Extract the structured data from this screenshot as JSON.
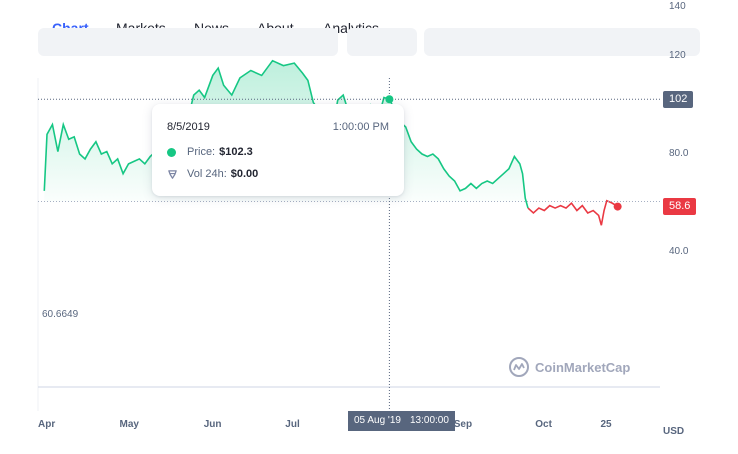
{
  "tabs": [
    {
      "label": "Chart",
      "active": true
    },
    {
      "label": "Markets",
      "active": false
    },
    {
      "label": "News",
      "active": false
    },
    {
      "label": "About",
      "active": false
    },
    {
      "label": "Analytics",
      "active": false
    }
  ],
  "tooltip": {
    "date": "8/5/2019",
    "time": "1:00:00 PM",
    "price_label": "Price:",
    "price_value": "$102.3",
    "volume_label": "Vol 24h:",
    "volume_value": "$0.00"
  },
  "crosshair": {
    "date_label": "05 Aug '19",
    "time_label": "13:00:00",
    "price_label": "102"
  },
  "current_price_label": "58.6",
  "baseline_label": "60.6649",
  "brand": "CoinMarketCap",
  "currency_unit": "USD",
  "colors": {
    "up": "#16c784",
    "down": "#ea3943",
    "accent": "#3861fb",
    "muted": "#58667e"
  },
  "chart_data": {
    "type": "area",
    "baseline": 60.6649,
    "ylim": [
      30,
      150
    ],
    "yticks": [
      "140",
      "120",
      "80.0",
      "40.0"
    ],
    "xticks": [
      "Apr",
      "May",
      "Jun",
      "Jul",
      "Aug",
      "Sep",
      "Oct",
      "25"
    ],
    "series": [
      {
        "points": [
          [
            "2019-03-31",
            65
          ],
          [
            "2019-04-01",
            88
          ],
          [
            "2019-04-03",
            92
          ],
          [
            "2019-04-05",
            81
          ],
          [
            "2019-04-07",
            92
          ],
          [
            "2019-04-09",
            86
          ],
          [
            "2019-04-11",
            87
          ],
          [
            "2019-04-13",
            80
          ],
          [
            "2019-04-15",
            78
          ],
          [
            "2019-04-17",
            82
          ],
          [
            "2019-04-19",
            85
          ],
          [
            "2019-04-21",
            80
          ],
          [
            "2019-04-23",
            81
          ],
          [
            "2019-04-25",
            76
          ],
          [
            "2019-04-27",
            78
          ],
          [
            "2019-04-29",
            72
          ],
          [
            "2019-05-01",
            76
          ],
          [
            "2019-05-03",
            77
          ],
          [
            "2019-05-05",
            78
          ],
          [
            "2019-05-07",
            76
          ],
          [
            "2019-05-09",
            79
          ],
          [
            "2019-05-11",
            81
          ],
          [
            "2019-05-13",
            77
          ],
          [
            "2019-05-15",
            80
          ],
          [
            "2019-05-17",
            79
          ],
          [
            "2019-05-19",
            88
          ],
          [
            "2019-05-21",
            91
          ],
          [
            "2019-05-23",
            95
          ],
          [
            "2019-05-25",
            104
          ],
          [
            "2019-05-27",
            106
          ],
          [
            "2019-05-29",
            103
          ],
          [
            "2019-06-01",
            112
          ],
          [
            "2019-06-03",
            115
          ],
          [
            "2019-06-05",
            108
          ],
          [
            "2019-06-08",
            104
          ],
          [
            "2019-06-11",
            111
          ],
          [
            "2019-06-15",
            114
          ],
          [
            "2019-06-19",
            112
          ],
          [
            "2019-06-23",
            118
          ],
          [
            "2019-06-27",
            116
          ],
          [
            "2019-07-01",
            117
          ],
          [
            "2019-07-04",
            113
          ],
          [
            "2019-07-06",
            110
          ],
          [
            "2019-07-08",
            101
          ],
          [
            "2019-07-10",
            98
          ],
          [
            "2019-07-12",
            95
          ],
          [
            "2019-07-14",
            86
          ],
          [
            "2019-07-15",
            90
          ],
          [
            "2019-07-17",
            102
          ],
          [
            "2019-07-19",
            104
          ],
          [
            "2019-07-21",
            97
          ],
          [
            "2019-07-23",
            98
          ],
          [
            "2019-07-25",
            94
          ],
          [
            "2019-07-27",
            95
          ],
          [
            "2019-07-29",
            100
          ],
          [
            "2019-07-31",
            97
          ],
          [
            "2019-08-02",
            99
          ],
          [
            "2019-08-03",
            103
          ],
          [
            "2019-08-05",
            102.3
          ],
          [
            "2019-08-07",
            98
          ],
          [
            "2019-08-09",
            93
          ],
          [
            "2019-08-11",
            91
          ],
          [
            "2019-08-13",
            85
          ],
          [
            "2019-08-15",
            82
          ],
          [
            "2019-08-17",
            80
          ],
          [
            "2019-08-19",
            79
          ],
          [
            "2019-08-21",
            80
          ],
          [
            "2019-08-23",
            78
          ],
          [
            "2019-08-25",
            74
          ],
          [
            "2019-08-27",
            71
          ],
          [
            "2019-08-29",
            69
          ],
          [
            "2019-08-31",
            65
          ],
          [
            "2019-09-02",
            66
          ],
          [
            "2019-09-04",
            68
          ],
          [
            "2019-09-06",
            66
          ],
          [
            "2019-09-08",
            68
          ],
          [
            "2019-09-10",
            69
          ],
          [
            "2019-09-12",
            68
          ],
          [
            "2019-09-14",
            70
          ],
          [
            "2019-09-16",
            72
          ],
          [
            "2019-09-18",
            74
          ],
          [
            "2019-09-20",
            79
          ],
          [
            "2019-09-22",
            76
          ],
          [
            "2019-09-23",
            72
          ],
          [
            "2019-09-24",
            62
          ],
          [
            "2019-09-25",
            58
          ],
          [
            "2019-09-27",
            56
          ],
          [
            "2019-09-29",
            58
          ],
          [
            "2019-10-01",
            57
          ],
          [
            "2019-10-03",
            59
          ],
          [
            "2019-10-05",
            58
          ],
          [
            "2019-10-07",
            59
          ],
          [
            "2019-10-09",
            58
          ],
          [
            "2019-10-11",
            60
          ],
          [
            "2019-10-13",
            57
          ],
          [
            "2019-10-15",
            59
          ],
          [
            "2019-10-17",
            56
          ],
          [
            "2019-10-19",
            57
          ],
          [
            "2019-10-21",
            55
          ],
          [
            "2019-10-22",
            51
          ],
          [
            "2019-10-23",
            57
          ],
          [
            "2019-10-24",
            61
          ],
          [
            "2019-10-26",
            60
          ],
          [
            "2019-10-28",
            58.6
          ]
        ]
      }
    ]
  }
}
